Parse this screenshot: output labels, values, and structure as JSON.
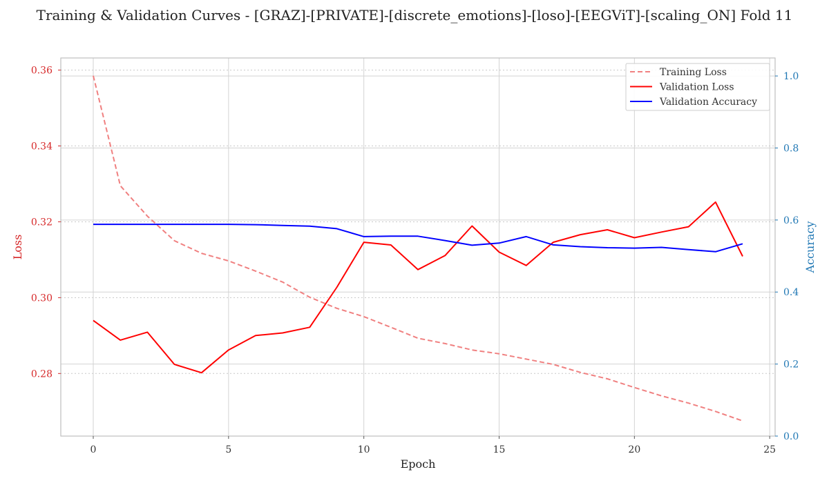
{
  "chart_data": {
    "type": "line",
    "title": "Training & Validation Curves - [GRAZ]-[PRIVATE]-[discrete_emotions]-[loso]-[EEGViT]-[scaling_ON] Fold 11",
    "xlabel": "Epoch",
    "ylabel_left": "Loss",
    "ylabel_right": "Accuracy",
    "xlim": [
      -1.2,
      25.2
    ],
    "ylim_left": [
      0.2635,
      0.3632
    ],
    "ylim_right": [
      0.0,
      1.05
    ],
    "xticks": [
      0,
      5,
      10,
      15,
      20,
      25
    ],
    "yticks_left": [
      0.28,
      0.3,
      0.32,
      0.34,
      0.36
    ],
    "yticks_right": [
      0.0,
      0.2,
      0.4,
      0.6,
      0.8,
      1.0
    ],
    "grid": true,
    "legend_position": "top-right",
    "x": [
      0,
      1,
      2,
      3,
      4,
      5,
      6,
      7,
      8,
      9,
      10,
      11,
      12,
      13,
      14,
      15,
      16,
      17,
      18,
      19,
      20,
      21,
      22,
      23,
      24
    ],
    "series": [
      {
        "name": "Training Loss",
        "axis": "left",
        "color": "#f08080",
        "style": "dashed",
        "values": [
          0.3585,
          0.3295,
          0.3215,
          0.315,
          0.3117,
          0.3097,
          0.307,
          0.3041,
          0.3001,
          0.2972,
          0.295,
          0.2922,
          0.2893,
          0.2879,
          0.2862,
          0.2852,
          0.2838,
          0.2824,
          0.2803,
          0.2786,
          0.2763,
          0.2741,
          0.2722,
          0.27,
          0.2675
        ]
      },
      {
        "name": "Validation Loss",
        "axis": "left",
        "color": "#ff0000",
        "style": "solid",
        "values": [
          0.294,
          0.2888,
          0.2909,
          0.2824,
          0.2802,
          0.2862,
          0.29,
          0.2907,
          0.2922,
          0.3027,
          0.3146,
          0.3139,
          0.3074,
          0.3111,
          0.3189,
          0.312,
          0.3085,
          0.3146,
          0.3166,
          0.3179,
          0.3158,
          0.3173,
          0.3187,
          0.3252,
          0.3109
        ]
      },
      {
        "name": "Validation Accuracy",
        "axis": "right",
        "color": "#0000ff",
        "style": "solid",
        "values": [
          0.588,
          0.588,
          0.588,
          0.588,
          0.588,
          0.588,
          0.587,
          0.585,
          0.583,
          0.576,
          0.554,
          0.555,
          0.555,
          0.543,
          0.53,
          0.536,
          0.554,
          0.531,
          0.526,
          0.523,
          0.522,
          0.524,
          0.518,
          0.512,
          0.534
        ]
      }
    ]
  }
}
